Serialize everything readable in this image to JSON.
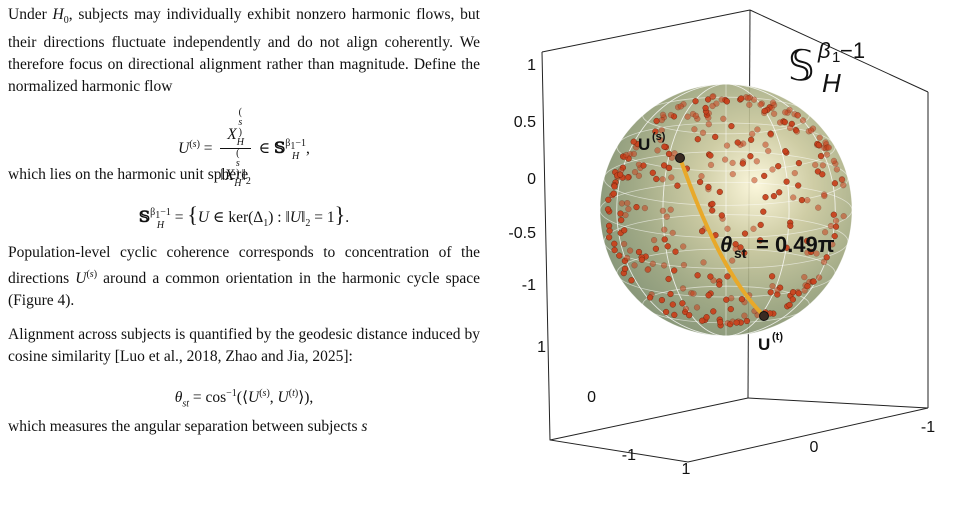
{
  "text": {
    "para1": "Under H₀, subjects may individually exhibit nonzero harmonic flows, but their directions fluctuate independently and do not align coherently. We therefore focus on directional alignment rather than magnitude. Define the normalized harmonic flow",
    "eq1": {
      "lhs": "U(s) =",
      "num": "X_H^(s)",
      "den": "‖X_H^(s)‖₂",
      "rhs": "∈ 𝕊_H^(β₁−1),"
    },
    "para2": "which lies on the harmonic unit sphere",
    "eq2": "𝕊_H^(β₁−1) = { U ∈ ker(Δ₁) : ‖U‖₂ = 1 }.",
    "para3": "Population-level cyclic coherence corresponds to concentration of the directions U(s) around a common orientation in the harmonic cycle space (Figure 4).",
    "para4": "Alignment across subjects is quantified by the geodesic distance induced by cosine similarity [Luo et al., 2018, Zhao and Jia, 2025]:",
    "eq3": "θ_st = cos⁻¹(⟨U(s), U(t)⟩),",
    "para5": "which measures the angular separation between subjects s"
  },
  "figure": {
    "sphere_label": "𝕊_H^(β₁−1)",
    "point_s_label": "U(s)",
    "point_t_label": "U(t)",
    "angle_label": "θst = 0.49π",
    "theta_sym": "θ",
    "theta_sub": "st",
    "angle_value": "= 0.49π",
    "s_main": "U",
    "s_sup": "(s)",
    "t_main": "U",
    "t_sup": "(t)",
    "z_ticks": [
      "1",
      "0.5",
      "0",
      "-0.5",
      "-1"
    ],
    "y_ticks": [
      "1",
      "0",
      "-1"
    ],
    "x_ticks": [
      "1",
      "0",
      "-1"
    ],
    "colors": {
      "points": "#c8431e",
      "arc": "#e8a92a",
      "sphere": "#9aa57a"
    }
  }
}
